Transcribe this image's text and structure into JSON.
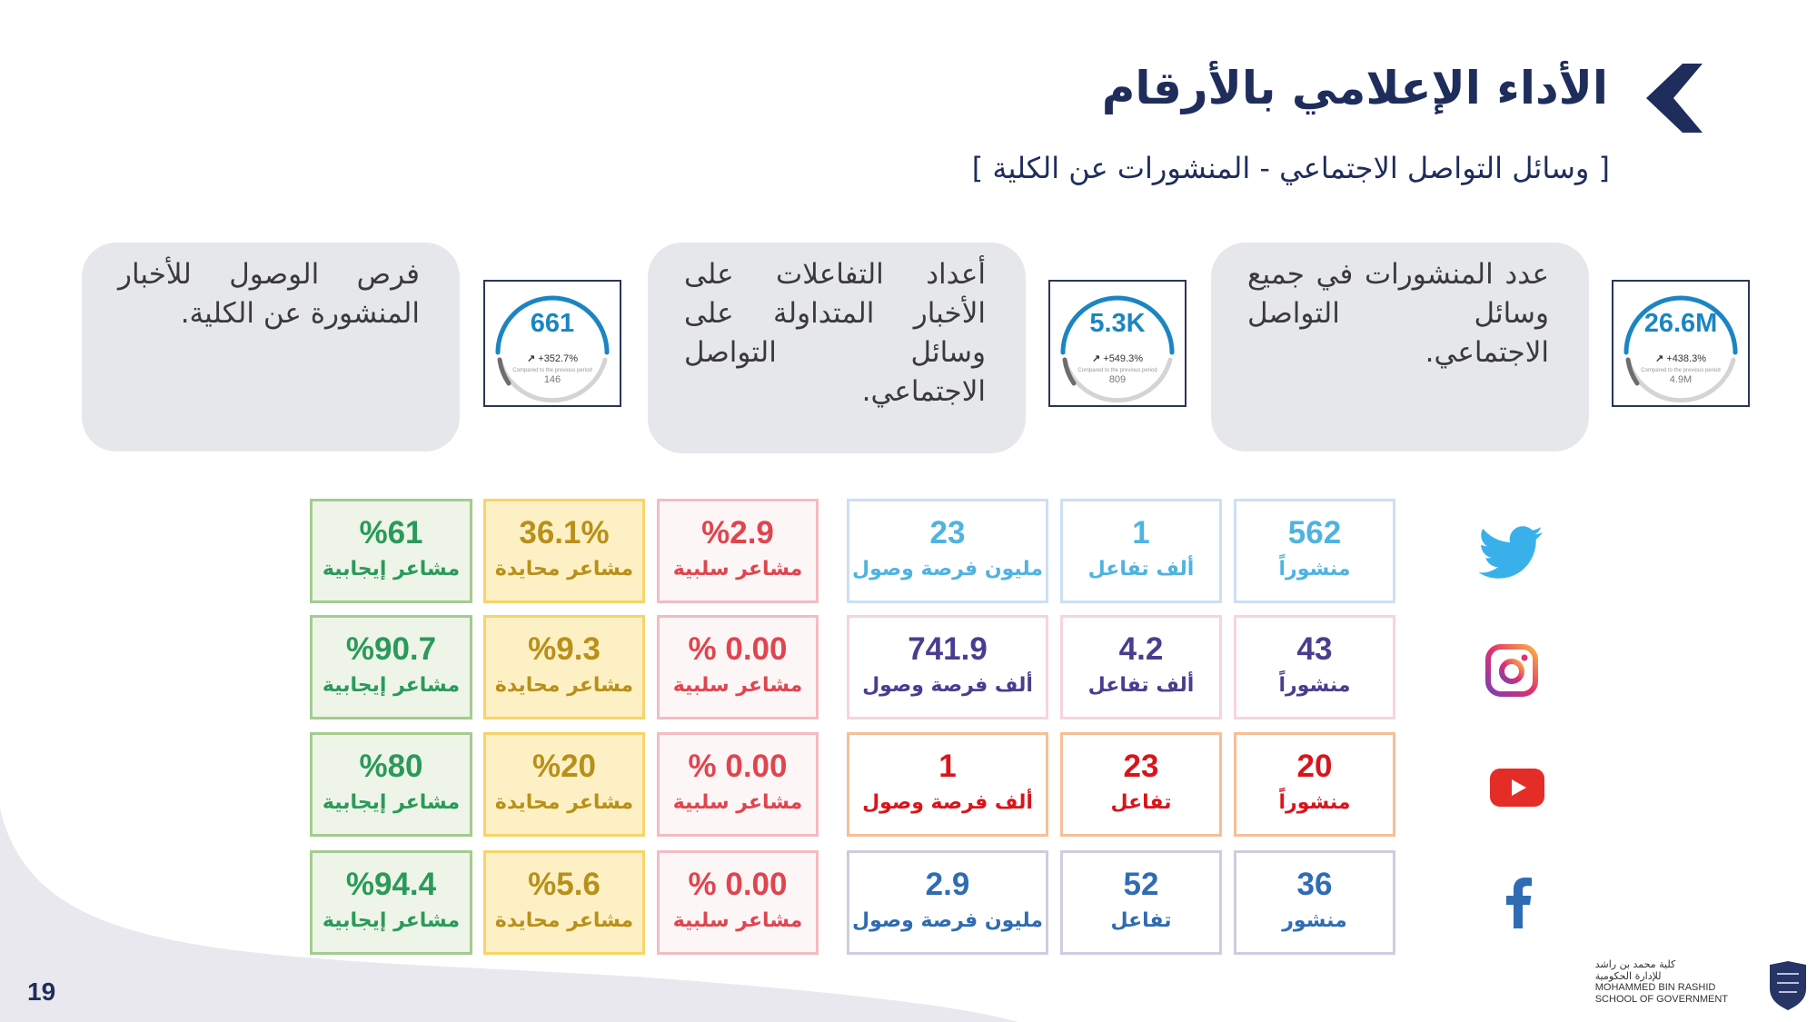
{
  "header": {
    "title": "الأداء الإعلامي بالأرقام",
    "subtitle": "[  وسائل التواصل الاجتماعي - المنشورات عن الكلية ]"
  },
  "kpis": [
    {
      "description": "عدد المنشورات في جميع وسائل التواصل الاجتماعي.",
      "value": "26.6M",
      "change": "+438.3%",
      "compare_label": "Compared to the previous period",
      "previous": "4.9M"
    },
    {
      "description": "أعداد التفاعلات على الأخبار المتداولة على وسائل التواصل الاجتماعي.",
      "value": "5.3K",
      "change": "+549.3%",
      "compare_label": "Compared to the previous period",
      "previous": "809"
    },
    {
      "description": "فرص الوصول للأخبار المنشورة عن الكلية.",
      "value": "661",
      "change": "+352.7%",
      "compare_label": "Compared to the previous period",
      "previous": "146"
    }
  ],
  "colors": {
    "navy": "#1f2d5c",
    "twitter": "#4fb3e0",
    "instagram": "#4a3d8f",
    "youtube": "#d9151c",
    "facebook": "#2f6cb3",
    "positive": "#2a9a5a",
    "neutral": "#b8901a",
    "negative": "#e0454f"
  },
  "platforms": [
    {
      "name": "twitter",
      "icon": "twitter-icon",
      "posts": {
        "value": "562",
        "label": "منشوراً"
      },
      "interactions": {
        "value": "1",
        "label": "ألف تفاعل"
      },
      "reach": {
        "value": "23",
        "label": "مليون فرصة وصول"
      },
      "negative": {
        "value": "%2.9",
        "label": "مشاعر سلبية"
      },
      "neutral": {
        "value": "36.1%",
        "label": "مشاعر محايدة"
      },
      "positive": {
        "value": "%61",
        "label": "مشاعر إيجابية"
      }
    },
    {
      "name": "instagram",
      "icon": "instagram-icon",
      "posts": {
        "value": "43",
        "label": "منشوراً"
      },
      "interactions": {
        "value": "4.2",
        "label": "ألف تفاعل"
      },
      "reach": {
        "value": "741.9",
        "label": "ألف فرصة وصول"
      },
      "negative": {
        "value": "% 0.00",
        "label": "مشاعر سلبية"
      },
      "neutral": {
        "value": "%9.3",
        "label": "مشاعر محايدة"
      },
      "positive": {
        "value": "%90.7",
        "label": "مشاعر إيجابية"
      }
    },
    {
      "name": "youtube",
      "icon": "youtube-icon",
      "posts": {
        "value": "20",
        "label": "منشوراً"
      },
      "interactions": {
        "value": "23",
        "label": "تفاعل"
      },
      "reach": {
        "value": "1",
        "label": "ألف فرصة وصول"
      },
      "negative": {
        "value": "% 0.00",
        "label": "مشاعر سلبية"
      },
      "neutral": {
        "value": "%20",
        "label": "مشاعر محايدة"
      },
      "positive": {
        "value": "%80",
        "label": "مشاعر إيجابية"
      }
    },
    {
      "name": "facebook",
      "icon": "facebook-icon",
      "posts": {
        "value": "36",
        "label": "منشور"
      },
      "interactions": {
        "value": "52",
        "label": "تفاعل"
      },
      "reach": {
        "value": "2.9",
        "label": "مليون فرصة وصول"
      },
      "negative": {
        "value": "% 0.00",
        "label": "مشاعر سلبية"
      },
      "neutral": {
        "value": "%5.6",
        "label": "مشاعر محايدة"
      },
      "positive": {
        "value": "%94.4",
        "label": "مشاعر إيجابية"
      }
    }
  ],
  "footer": {
    "page_number": "19",
    "logo_ar_1": "كلية محمد بن راشد",
    "logo_ar_2": "للإدارة الحكومية",
    "logo_en_1": "MOHAMMED BIN RASHID",
    "logo_en_2": "SCHOOL OF GOVERNMENT"
  }
}
